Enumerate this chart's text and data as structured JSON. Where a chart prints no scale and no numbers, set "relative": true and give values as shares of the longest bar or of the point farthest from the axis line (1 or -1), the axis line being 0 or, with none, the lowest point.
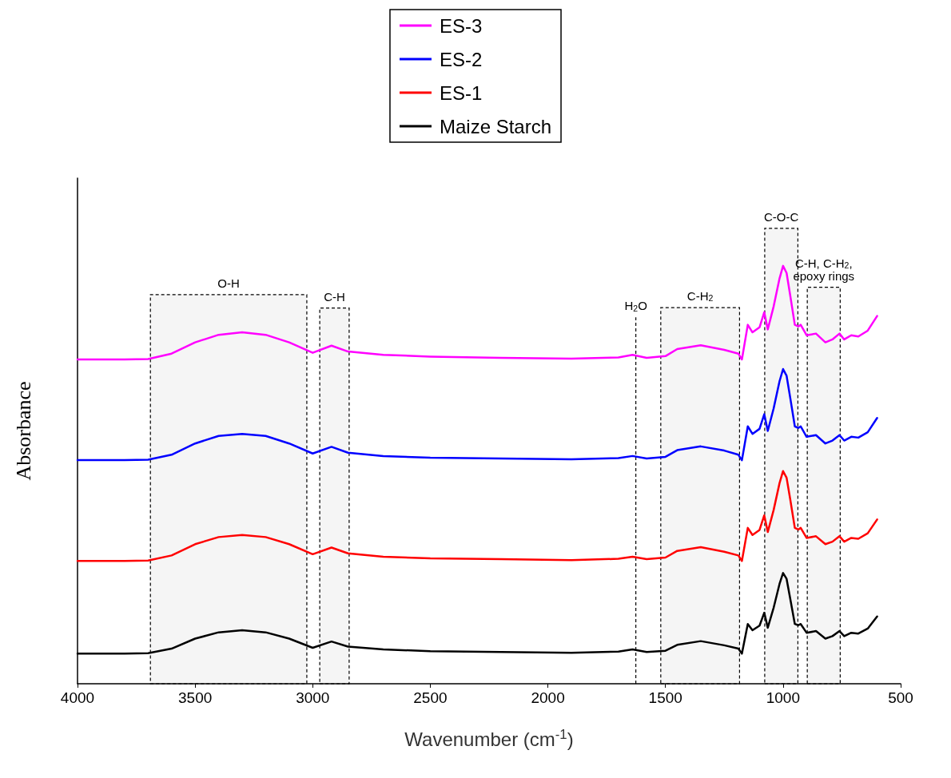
{
  "chart_data": {
    "type": "line",
    "relative": true,
    "xlabel": "Wavenumber (cm$^{-1}$)",
    "ylabel": "Absorbance",
    "xlim": [
      4000,
      500
    ],
    "xticks": [
      4000,
      3500,
      3000,
      2500,
      2000,
      1500,
      1000,
      500
    ],
    "grid": false,
    "legend": "top",
    "marker": "none",
    "line_style": "solid",
    "x": [
      4000,
      3800,
      3700,
      3600,
      3500,
      3400,
      3300,
      3200,
      3100,
      3000,
      2920,
      2850,
      2700,
      2500,
      2200,
      1900,
      1700,
      1640,
      1580,
      1500,
      1450,
      1350,
      1250,
      1190,
      1175,
      1150,
      1130,
      1100,
      1080,
      1065,
      1040,
      1015,
      1000,
      985,
      970,
      950,
      935,
      925,
      900,
      860,
      820,
      790,
      760,
      740,
      710,
      680,
      640,
      600
    ],
    "series": [
      {
        "name": "ES-3",
        "color": "#ff00ff",
        "values": [
          0.776,
          0.776,
          0.777,
          0.79,
          0.817,
          0.835,
          0.841,
          0.835,
          0.817,
          0.792,
          0.809,
          0.795,
          0.787,
          0.783,
          0.78,
          0.778,
          0.781,
          0.787,
          0.78,
          0.784,
          0.801,
          0.81,
          0.799,
          0.79,
          0.776,
          0.859,
          0.841,
          0.853,
          0.889,
          0.848,
          0.903,
          0.97,
          1.0,
          0.983,
          0.931,
          0.859,
          0.855,
          0.859,
          0.834,
          0.838,
          0.817,
          0.824,
          0.838,
          0.824,
          0.834,
          0.831,
          0.845,
          0.88
        ]
      },
      {
        "name": "ES-2",
        "color": "#0000ff",
        "values": [
          0.535,
          0.535,
          0.536,
          0.548,
          0.575,
          0.593,
          0.598,
          0.593,
          0.575,
          0.551,
          0.567,
          0.553,
          0.545,
          0.541,
          0.539,
          0.537,
          0.54,
          0.545,
          0.539,
          0.543,
          0.559,
          0.568,
          0.558,
          0.548,
          0.535,
          0.616,
          0.598,
          0.61,
          0.645,
          0.605,
          0.659,
          0.724,
          0.753,
          0.737,
          0.686,
          0.616,
          0.612,
          0.616,
          0.591,
          0.595,
          0.575,
          0.582,
          0.595,
          0.582,
          0.591,
          0.589,
          0.602,
          0.636
        ]
      },
      {
        "name": "ES-1",
        "color": "#ff0000",
        "values": [
          0.294,
          0.294,
          0.295,
          0.307,
          0.334,
          0.351,
          0.356,
          0.351,
          0.334,
          0.31,
          0.326,
          0.312,
          0.304,
          0.3,
          0.298,
          0.296,
          0.299,
          0.304,
          0.298,
          0.302,
          0.318,
          0.327,
          0.316,
          0.307,
          0.294,
          0.373,
          0.356,
          0.368,
          0.403,
          0.363,
          0.416,
          0.48,
          0.509,
          0.493,
          0.443,
          0.373,
          0.369,
          0.373,
          0.349,
          0.353,
          0.334,
          0.34,
          0.353,
          0.34,
          0.349,
          0.347,
          0.36,
          0.393
        ]
      },
      {
        "name": "Maize Starch",
        "color": "#000000",
        "values": [
          0.072,
          0.072,
          0.073,
          0.084,
          0.108,
          0.123,
          0.128,
          0.123,
          0.108,
          0.086,
          0.101,
          0.089,
          0.082,
          0.078,
          0.076,
          0.074,
          0.077,
          0.082,
          0.076,
          0.079,
          0.093,
          0.102,
          0.092,
          0.084,
          0.072,
          0.143,
          0.128,
          0.139,
          0.17,
          0.134,
          0.182,
          0.239,
          0.265,
          0.251,
          0.205,
          0.143,
          0.14,
          0.143,
          0.122,
          0.126,
          0.108,
          0.114,
          0.126,
          0.114,
          0.122,
          0.12,
          0.132,
          0.161
        ]
      }
    ],
    "ref_lines": [
      {
        "axis": "x",
        "value": 1626,
        "label": "H$_{2}$O",
        "color": "#000000",
        "line_style": "dashed"
      }
    ],
    "bands": [
      {
        "axis": "x",
        "from": 3690,
        "to": 3025,
        "label": "O-H",
        "color": "#000000"
      },
      {
        "axis": "x",
        "from": 2970,
        "to": 2845,
        "label": "C-H",
        "color": "#000000"
      },
      {
        "axis": "x",
        "from": 1520,
        "to": 1185,
        "label": "C-H$_{2}$",
        "color": "#000000"
      },
      {
        "axis": "x",
        "from": 1078,
        "to": 937,
        "label": "C-O-C",
        "color": "#000000"
      },
      {
        "axis": "x",
        "from": 897,
        "to": 757,
        "label": "C-H, C-H$_{2}$,\nepoxy rings",
        "color": "#000000"
      }
    ]
  }
}
